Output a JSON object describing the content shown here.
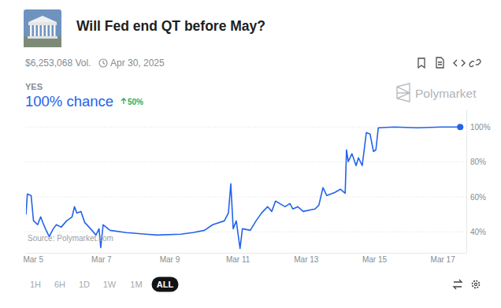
{
  "chart_data": {
    "type": "line",
    "title": "Will Fed end QT before May?",
    "x": [
      4.8,
      4.84,
      4.95,
      5.02,
      5.14,
      5.23,
      5.3,
      5.37,
      5.48,
      5.6,
      5.69,
      5.83,
      5.99,
      6.15,
      6.22,
      6.29,
      6.41,
      6.52,
      6.69,
      6.85,
      6.94,
      6.99,
      7.06,
      7.26,
      7.73,
      8.3,
      8.65,
      9.34,
      9.69,
      10.03,
      10.27,
      10.61,
      10.73,
      10.8,
      10.87,
      10.96,
      11.07,
      11.14,
      11.37,
      11.54,
      11.7,
      11.88,
      12.0,
      12.11,
      12.23,
      12.39,
      12.53,
      12.62,
      12.76,
      12.92,
      13.27,
      13.38,
      13.5,
      13.61,
      13.85,
      14.01,
      14.15,
      14.19,
      14.24,
      14.35,
      14.47,
      14.54,
      14.65,
      14.77,
      14.88,
      14.98,
      15.05,
      15.12,
      15.58,
      16.27,
      16.96,
      17.52
    ],
    "series": [
      {
        "name": "YES",
        "color": "#2463eb",
        "values": [
          49.9,
          61.7,
          60.8,
          46.4,
          44.1,
          48.6,
          45.0,
          41.8,
          37.3,
          41.8,
          44.1,
          42.7,
          46.3,
          48.6,
          54.4,
          50.8,
          51.7,
          45.4,
          41.8,
          38.2,
          41.8,
          31.0,
          44.1,
          40.9,
          39.6,
          38.7,
          38.2,
          38.7,
          39.6,
          40.9,
          44.1,
          46.3,
          50.8,
          67.5,
          41.8,
          46.3,
          30.5,
          41.8,
          40.9,
          46.3,
          50.8,
          54.4,
          51.7,
          57.6,
          56.2,
          54.4,
          56.2,
          53.1,
          54.4,
          51.7,
          53.1,
          55.3,
          65.3,
          60.8,
          62.6,
          64.4,
          62.1,
          86.9,
          80.2,
          84.7,
          77.9,
          82.4,
          77.9,
          96.8,
          95.9,
          86.0,
          86.9,
          99.5,
          100,
          99.5,
          100,
          100
        ]
      }
    ],
    "xlim": [
      4.8,
      17.7
    ],
    "xticks": [
      {
        "value": 5,
        "label": "Mar 5"
      },
      {
        "value": 7,
        "label": "Mar 7"
      },
      {
        "value": 9,
        "label": "Mar 9"
      },
      {
        "value": 11,
        "label": "Mar 11"
      },
      {
        "value": 13,
        "label": "Mar 13"
      },
      {
        "value": 15,
        "label": "Mar 15"
      },
      {
        "value": 17,
        "label": "Mar 17"
      }
    ],
    "ylim": [
      28,
      110
    ],
    "yticks": [
      {
        "value": 40,
        "label": "40%"
      },
      {
        "value": 60,
        "label": "60%"
      },
      {
        "value": 80,
        "label": "80%"
      },
      {
        "value": 100,
        "label": "100%"
      }
    ],
    "grid": true,
    "marker": "last",
    "line_style": "solid"
  },
  "page": {
    "volume": "$6,253,068 Vol.",
    "end_date": "Apr 30, 2025",
    "chance": "100% chance",
    "change": "50%",
    "watermark": "Polymarket",
    "source": "Source: Polymarket.com",
    "range_buttons": [
      "1H",
      "6H",
      "1D",
      "1W",
      "1M",
      "ALL"
    ],
    "selected": "ALL"
  }
}
